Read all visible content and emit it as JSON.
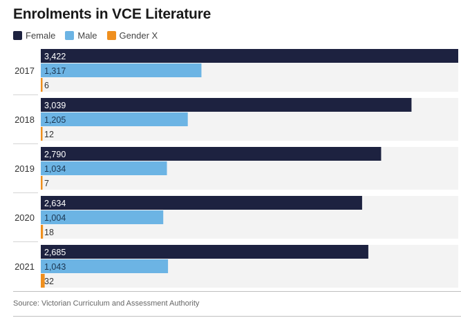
{
  "colors": {
    "female": "#1d2240",
    "male": "#6cb4e4",
    "gender_x": "#ef8f1e",
    "row_background": "#f3f3f3"
  },
  "chart_data": {
    "type": "bar",
    "orientation": "horizontal",
    "title": "Enrolments in VCE Literature",
    "categories": [
      "2017",
      "2018",
      "2019",
      "2020",
      "2021"
    ],
    "series": [
      {
        "name": "Female",
        "values": [
          3422,
          3039,
          2790,
          2634,
          2685
        ],
        "labels": [
          "3,422",
          "3,039",
          "2,790",
          "2,634",
          "2,685"
        ]
      },
      {
        "name": "Male",
        "values": [
          1317,
          1205,
          1034,
          1004,
          1043
        ],
        "labels": [
          "1,317",
          "1,205",
          "1,034",
          "1,004",
          "1,043"
        ]
      },
      {
        "name": "Gender X",
        "values": [
          6,
          12,
          7,
          18,
          32
        ],
        "labels": [
          "6",
          "12",
          "7",
          "18",
          "32"
        ]
      }
    ],
    "xlim": [
      0,
      3422
    ],
    "legend_position": "top-left",
    "grid": false
  },
  "source": "Source: Victorian Curriculum and Assessment Authority"
}
